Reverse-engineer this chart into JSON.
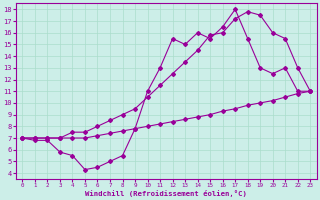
{
  "xlabel": "Windchill (Refroidissement éolien,°C)",
  "bg_color": "#cceee8",
  "line_color": "#990099",
  "grid_color": "#aaddcc",
  "xlim": [
    -0.5,
    23.5
  ],
  "ylim": [
    3.5,
    18.5
  ],
  "xticks": [
    0,
    1,
    2,
    3,
    4,
    5,
    6,
    7,
    8,
    9,
    10,
    11,
    12,
    13,
    14,
    15,
    16,
    17,
    18,
    19,
    20,
    21,
    22,
    23
  ],
  "yticks": [
    4,
    5,
    6,
    7,
    8,
    9,
    10,
    11,
    12,
    13,
    14,
    15,
    16,
    17,
    18
  ],
  "line1_x": [
    0,
    1,
    2,
    3,
    4,
    5,
    6,
    7,
    8,
    9,
    10,
    11,
    12,
    13,
    14,
    15,
    16,
    17,
    18,
    19,
    20,
    21,
    22,
    23
  ],
  "line1_y": [
    7.0,
    7.0,
    7.0,
    7.0,
    7.0,
    7.0,
    7.2,
    7.4,
    7.6,
    7.8,
    8.0,
    8.2,
    8.4,
    8.6,
    8.8,
    9.0,
    9.3,
    9.5,
    9.8,
    10.0,
    10.2,
    10.5,
    10.8,
    11.0
  ],
  "line2_x": [
    0,
    1,
    2,
    3,
    4,
    5,
    6,
    7,
    8,
    9,
    10,
    11,
    12,
    13,
    14,
    15,
    16,
    17,
    18,
    19,
    20,
    21,
    22,
    23
  ],
  "line2_y": [
    7.0,
    6.8,
    6.8,
    5.8,
    5.5,
    4.3,
    4.5,
    5.0,
    5.5,
    7.8,
    11.0,
    13.0,
    15.5,
    15.0,
    16.0,
    15.5,
    16.5,
    18.0,
    15.5,
    13.0,
    12.5,
    13.0,
    11.0,
    11.0
  ],
  "line3_x": [
    0,
    1,
    2,
    3,
    4,
    5,
    6,
    7,
    8,
    9,
    10,
    11,
    12,
    13,
    14,
    15,
    16,
    17,
    18,
    19,
    20,
    21,
    22,
    23
  ],
  "line3_y": [
    7.0,
    7.0,
    7.0,
    7.0,
    7.5,
    7.5,
    8.0,
    8.5,
    9.0,
    9.5,
    10.5,
    11.5,
    12.5,
    13.5,
    14.5,
    15.8,
    16.0,
    17.2,
    17.8,
    17.5,
    16.0,
    15.5,
    13.0,
    11.0
  ]
}
